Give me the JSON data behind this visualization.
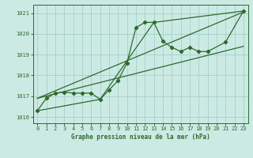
{
  "title": "Graphe pression niveau de la mer (hPa)",
  "bg_color": "#cceae4",
  "grid_color": "#a8d4cc",
  "line_color": "#2d6a2d",
  "ylim": [
    1015.7,
    1021.4
  ],
  "yticks": [
    1016,
    1017,
    1018,
    1019,
    1020,
    1021
  ],
  "xlim": [
    -0.5,
    23.5
  ],
  "xticks": [
    0,
    1,
    2,
    3,
    4,
    5,
    6,
    7,
    8,
    9,
    10,
    11,
    12,
    13,
    14,
    15,
    16,
    17,
    18,
    19,
    20,
    21,
    22,
    23
  ],
  "line1_x": [
    0,
    1,
    2,
    3,
    4,
    5,
    6,
    7,
    8,
    9,
    10,
    11,
    12,
    13,
    14,
    15,
    16,
    17,
    18,
    19,
    21,
    23
  ],
  "line1_y": [
    1016.3,
    1016.9,
    1017.15,
    1017.2,
    1017.15,
    1017.15,
    1017.15,
    1016.85,
    1017.3,
    1017.75,
    1018.6,
    1020.3,
    1020.55,
    1020.55,
    1019.65,
    1019.35,
    1019.15,
    1019.35,
    1019.15,
    1019.15,
    1019.6,
    1021.1
  ],
  "line2_x": [
    0,
    7,
    13,
    23
  ],
  "line2_y": [
    1016.3,
    1016.85,
    1020.55,
    1021.1
  ],
  "line3_x": [
    0,
    23
  ],
  "line3_y": [
    1016.9,
    1021.05
  ],
  "line4_x": [
    0,
    23
  ],
  "line4_y": [
    1016.9,
    1019.4
  ],
  "xlabel_fontsize": 5.5,
  "tick_fontsize": 5.0,
  "lw": 0.9,
  "ms": 2.2
}
